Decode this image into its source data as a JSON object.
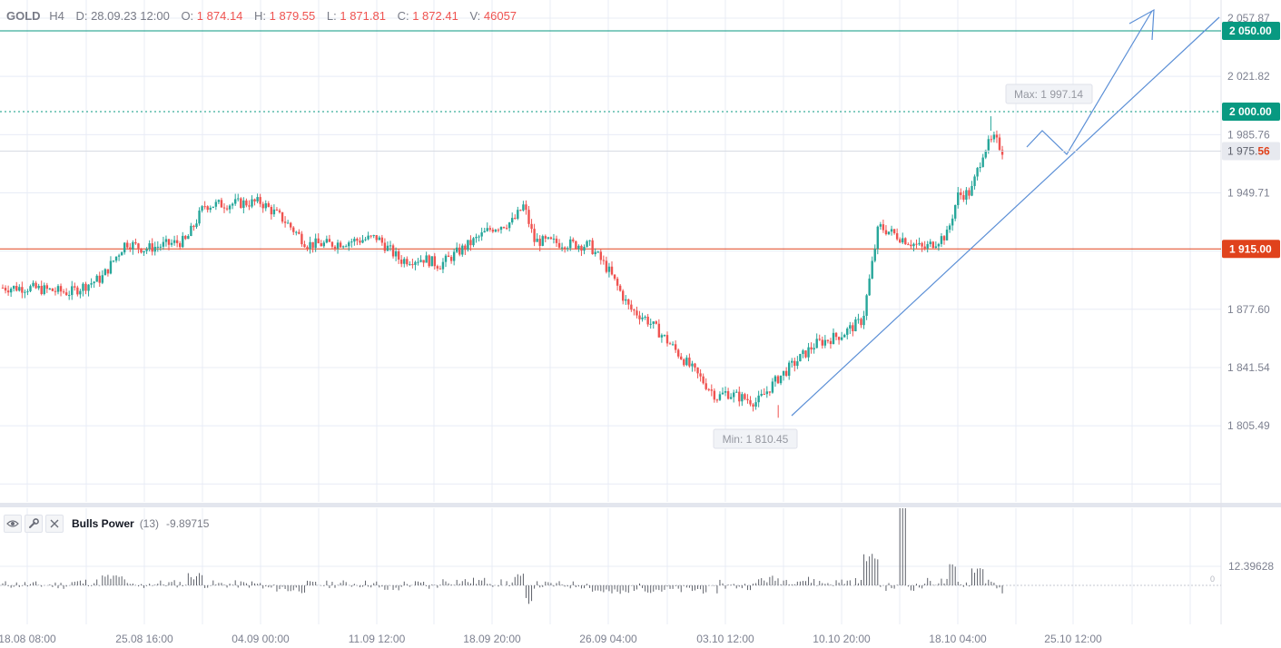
{
  "header": {
    "symbol": "GOLD",
    "timeframe": "H4",
    "date_label": "D:",
    "date_value": "28.09.23 12:00",
    "open_label": "O:",
    "open_value": "1 874.14",
    "high_label": "H:",
    "high_value": "1 879.55",
    "low_label": "L:",
    "low_value": "1 871.81",
    "close_label": "C:",
    "close_value": "1 872.41",
    "volume_label": "V:",
    "volume_value": "46057"
  },
  "indicator": {
    "name": "Bulls Power",
    "params": "(13)",
    "value": "-9.89715",
    "icons": [
      "eye-icon",
      "wrench-icon",
      "close-icon"
    ],
    "axis_label": "12.39628",
    "zero_label": "0"
  },
  "price_axis": {
    "ticks": [
      "2 057.87",
      "2 021.82",
      "1 985.76",
      "1 949.71",
      "1 877.60",
      "1 841.54",
      "1 805.49"
    ]
  },
  "levels": [
    {
      "label": "2 050.00",
      "color": "#089981",
      "style": "solid"
    },
    {
      "label": "2 000.00",
      "color": "#089981",
      "style": "dotted"
    },
    {
      "label": "1 915.00",
      "color": "#e0421c",
      "style": "solid"
    }
  ],
  "current_price": {
    "main": "1 975.",
    "accent": "56"
  },
  "max_label": "Max: 1 997.14",
  "min_label": "Min: 1 810.45",
  "time_axis": {
    "labels": [
      "18.08 08:00",
      "25.08 16:00",
      "04.09 00:00",
      "11.09 12:00",
      "18.09 20:00",
      "26.09 04:00",
      "03.10 12:00",
      "10.10 20:00",
      "18.10 04:00",
      "25.10 12:00"
    ]
  },
  "colors": {
    "up": "#26a69a",
    "down": "#ef5350",
    "drawing": "#5b8fd6",
    "grid": "#e8ecf6",
    "axis_text": "#7d8190"
  },
  "chart_data": {
    "type": "candlestick",
    "symbol": "GOLD",
    "timeframe": "H4",
    "price_range": [
      1787.47,
      2070.0
    ],
    "date_range": [
      "18.08",
      "25.10"
    ],
    "anchors": [
      {
        "time": "18.08 08:00",
        "price": 1891
      },
      {
        "time": "21.08 00:00",
        "price": 1888
      },
      {
        "time": "23.08 00:00",
        "price": 1897
      },
      {
        "time": "24.08 12:00",
        "price": 1919
      },
      {
        "time": "25.08 16:00",
        "price": 1915
      },
      {
        "time": "29.08 00:00",
        "price": 1920
      },
      {
        "time": "30.08 12:00",
        "price": 1942
      },
      {
        "time": "04.09 00:00",
        "price": 1944
      },
      {
        "time": "05.09 12:00",
        "price": 1933
      },
      {
        "time": "07.09 00:00",
        "price": 1918
      },
      {
        "time": "08.09 12:00",
        "price": 1918
      },
      {
        "time": "11.09 12:00",
        "price": 1922
      },
      {
        "time": "13.09 00:00",
        "price": 1908
      },
      {
        "time": "14.09 12:00",
        "price": 1909
      },
      {
        "time": "15.09 12:00",
        "price": 1905
      },
      {
        "time": "18.09 20:00",
        "price": 1928
      },
      {
        "time": "20.09 04:00",
        "price": 1932
      },
      {
        "time": "20.09 20:00",
        "price": 1942
      },
      {
        "time": "21.09 12:00",
        "price": 1920
      },
      {
        "time": "25.09 00:00",
        "price": 1917
      },
      {
        "time": "26.09 04:00",
        "price": 1902
      },
      {
        "time": "27.09 12:00",
        "price": 1878
      },
      {
        "time": "28.09 12:00",
        "price": 1872
      },
      {
        "time": "29.09 12:00",
        "price": 1862
      },
      {
        "time": "03.10 00:00",
        "price": 1823
      },
      {
        "time": "03.10 12:00",
        "price": 1826
      },
      {
        "time": "05.10 12:00",
        "price": 1820
      },
      {
        "time": "06.10 20:00",
        "price": 1835
      },
      {
        "time": "09.10 04:00",
        "price": 1856
      },
      {
        "time": "10.10 20:00",
        "price": 1862
      },
      {
        "time": "12.10 04:00",
        "price": 1871
      },
      {
        "time": "13.10 04:00",
        "price": 1929
      },
      {
        "time": "16.10 00:00",
        "price": 1915
      },
      {
        "time": "17.10 12:00",
        "price": 1924
      },
      {
        "time": "18.10 04:00",
        "price": 1948
      },
      {
        "time": "19.10 00:00",
        "price": 1950
      },
      {
        "time": "19.10 20:00",
        "price": 1977
      },
      {
        "time": "20.10 12:00",
        "price": 1983
      },
      {
        "time": "21.10 00:00",
        "price": 1976
      }
    ],
    "max": {
      "value": 1997.14
    },
    "min": {
      "value": 1810.45
    },
    "horizontal_levels": [
      2050.0,
      2000.0,
      1915.0
    ],
    "bulls_power": {
      "period": 13,
      "last": -9.89715
    }
  }
}
